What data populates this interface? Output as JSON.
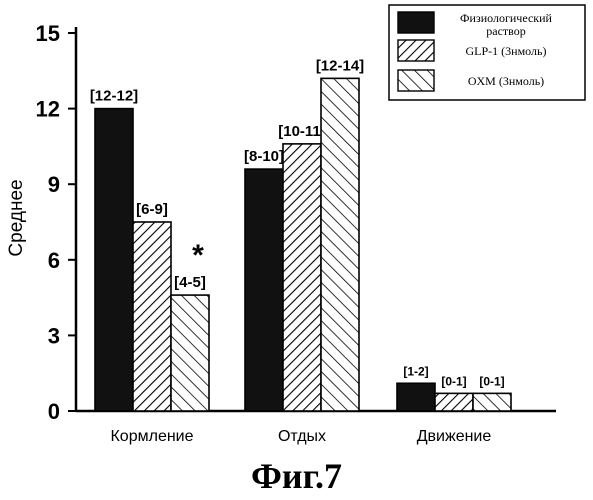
{
  "chart_data": {
    "type": "bar",
    "ylabel": "Среднее",
    "ylim": [
      0,
      15
    ],
    "yticks": [
      0,
      3,
      6,
      9,
      12,
      15
    ],
    "categories": [
      "Кормление",
      "Отдых",
      "Движение"
    ],
    "series": [
      {
        "name": "Физиологический раствор",
        "pattern": "solid",
        "values": [
          12,
          9.6,
          1.1
        ],
        "labels": [
          "[12-12]",
          "[8-10]",
          "[1-2]"
        ]
      },
      {
        "name": "GLP-1 (3нмоль)",
        "pattern": "hatch-right",
        "values": [
          7.5,
          10.6,
          0.7
        ],
        "labels": [
          "[6-9]",
          "[10-11]",
          "[0-1]"
        ]
      },
      {
        "name": "OXM (3нмоль)",
        "pattern": "hatch-left",
        "values": [
          4.6,
          13.2,
          0.7
        ],
        "labels": [
          "[4-5]",
          "[12-14]",
          "[0-1]"
        ]
      }
    ],
    "annotations": [
      {
        "text": "*",
        "category": "Кормление",
        "series": "OXM (3нмоль)"
      }
    ],
    "legend": "top-right",
    "grid": false
  },
  "figure_caption": "Фиг.7"
}
